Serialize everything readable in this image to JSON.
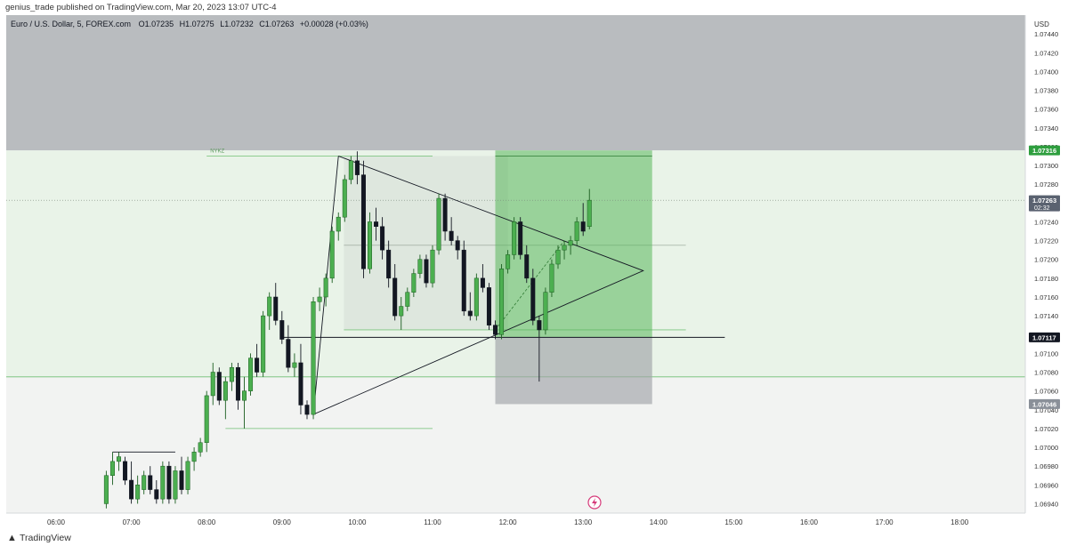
{
  "header": {
    "published": "genius_trade published on TradingView.com, Mar 20, 2023 13:07 UTC-4"
  },
  "legend": {
    "symbol": "Euro / U.S. Dollar, 5, FOREX.com",
    "open": "O1.07235",
    "high": "H1.07275",
    "low": "L1.07232",
    "close": "C1.07263",
    "change": "+0.00028 (+0.03%)"
  },
  "price_axis": {
    "currency": "USD",
    "ticks": [
      "1.07440",
      "1.07420",
      "1.07400",
      "1.07380",
      "1.07360",
      "1.07340",
      "1.07320",
      "1.07300",
      "1.07280",
      "1.07260",
      "1.07240",
      "1.07220",
      "1.07200",
      "1.07180",
      "1.07160",
      "1.07140",
      "1.07120",
      "1.07100",
      "1.07080",
      "1.07060",
      "1.07040",
      "1.07020",
      "1.07000",
      "1.06980",
      "1.06960",
      "1.06940"
    ]
  },
  "price_badges": [
    {
      "label": "1.07316",
      "value": 1.07316,
      "bg": "#2e9e3e",
      "fg": "#ffffff"
    },
    {
      "label": "1.07263",
      "sub": "02:32",
      "value": 1.07263,
      "bg": "#5a6270",
      "fg": "#ffffff"
    },
    {
      "label": "1.07117",
      "value": 1.07117,
      "bg": "#131722",
      "fg": "#ffffff"
    },
    {
      "label": "1.07046",
      "value": 1.07046,
      "bg": "#8a9099",
      "fg": "#ffffff"
    }
  ],
  "time_axis": [
    "06:00",
    "07:00",
    "08:00",
    "09:00",
    "10:00",
    "11:00",
    "12:00",
    "13:00",
    "14:00",
    "15:00",
    "16:00",
    "17:00",
    "18:00"
  ],
  "annotation_label": "NYKZ",
  "footer": {
    "brand": "TradingView"
  },
  "colors": {
    "up": "#4caf50",
    "down": "#131722",
    "upBorder": "#1b5e20",
    "zoneGray": "#b9bcbf",
    "zoneGreen": "#e9f3e8",
    "target": "#58b65a",
    "stop": "#a0a3a8"
  },
  "chart_data": {
    "type": "candlestick",
    "symbol": "EURUSD",
    "timeframe": "5",
    "ylim": [
      1.0693,
      1.0746
    ],
    "xlim": [
      "05:45",
      "18:30"
    ],
    "candles": [
      {
        "t": "06:40",
        "o": 1.0694,
        "h": 1.06975,
        "l": 1.06935,
        "c": 1.0697
      },
      {
        "t": "06:45",
        "o": 1.0697,
        "h": 1.06995,
        "l": 1.0696,
        "c": 1.06985
      },
      {
        "t": "06:50",
        "o": 1.06985,
        "h": 1.06995,
        "l": 1.06975,
        "c": 1.0699
      },
      {
        "t": "06:55",
        "o": 1.06985,
        "h": 1.0699,
        "l": 1.0696,
        "c": 1.06965
      },
      {
        "t": "07:00",
        "o": 1.06965,
        "h": 1.06985,
        "l": 1.0694,
        "c": 1.06945
      },
      {
        "t": "07:05",
        "o": 1.06945,
        "h": 1.0697,
        "l": 1.0694,
        "c": 1.0696
      },
      {
        "t": "07:10",
        "o": 1.06955,
        "h": 1.06975,
        "l": 1.0695,
        "c": 1.0697
      },
      {
        "t": "07:15",
        "o": 1.0697,
        "h": 1.0698,
        "l": 1.0695,
        "c": 1.06955
      },
      {
        "t": "07:20",
        "o": 1.06955,
        "h": 1.06965,
        "l": 1.0694,
        "c": 1.06945
      },
      {
        "t": "07:25",
        "o": 1.06945,
        "h": 1.06985,
        "l": 1.0694,
        "c": 1.0698
      },
      {
        "t": "07:30",
        "o": 1.0698,
        "h": 1.06985,
        "l": 1.0694,
        "c": 1.06945
      },
      {
        "t": "07:35",
        "o": 1.06945,
        "h": 1.0698,
        "l": 1.0694,
        "c": 1.06975
      },
      {
        "t": "07:40",
        "o": 1.06975,
        "h": 1.0699,
        "l": 1.0695,
        "c": 1.06955
      },
      {
        "t": "07:45",
        "o": 1.06955,
        "h": 1.0699,
        "l": 1.0695,
        "c": 1.06985
      },
      {
        "t": "07:50",
        "o": 1.06985,
        "h": 1.07,
        "l": 1.06975,
        "c": 1.06995
      },
      {
        "t": "07:55",
        "o": 1.06995,
        "h": 1.0701,
        "l": 1.0699,
        "c": 1.07005
      },
      {
        "t": "08:00",
        "o": 1.07005,
        "h": 1.0706,
        "l": 1.06995,
        "c": 1.07055
      },
      {
        "t": "08:05",
        "o": 1.07055,
        "h": 1.0709,
        "l": 1.07045,
        "c": 1.0708
      },
      {
        "t": "08:10",
        "o": 1.0708,
        "h": 1.07085,
        "l": 1.07045,
        "c": 1.0705
      },
      {
        "t": "08:15",
        "o": 1.0705,
        "h": 1.07075,
        "l": 1.0703,
        "c": 1.0707
      },
      {
        "t": "08:20",
        "o": 1.0707,
        "h": 1.0709,
        "l": 1.0706,
        "c": 1.07085
      },
      {
        "t": "08:25",
        "o": 1.07085,
        "h": 1.0709,
        "l": 1.0704,
        "c": 1.0705
      },
      {
        "t": "08:30",
        "o": 1.0705,
        "h": 1.07075,
        "l": 1.0702,
        "c": 1.0706
      },
      {
        "t": "08:35",
        "o": 1.0706,
        "h": 1.071,
        "l": 1.07055,
        "c": 1.07095
      },
      {
        "t": "08:40",
        "o": 1.07095,
        "h": 1.0711,
        "l": 1.07075,
        "c": 1.0708
      },
      {
        "t": "08:45",
        "o": 1.0708,
        "h": 1.07145,
        "l": 1.07075,
        "c": 1.0714
      },
      {
        "t": "08:50",
        "o": 1.0714,
        "h": 1.07165,
        "l": 1.07125,
        "c": 1.0716
      },
      {
        "t": "08:55",
        "o": 1.0716,
        "h": 1.07175,
        "l": 1.0713,
        "c": 1.07135
      },
      {
        "t": "09:00",
        "o": 1.07135,
        "h": 1.07145,
        "l": 1.0711,
        "c": 1.07115
      },
      {
        "t": "09:05",
        "o": 1.07115,
        "h": 1.0713,
        "l": 1.0708,
        "c": 1.07085
      },
      {
        "t": "09:10",
        "o": 1.07085,
        "h": 1.071,
        "l": 1.07075,
        "c": 1.0709
      },
      {
        "t": "09:15",
        "o": 1.0709,
        "h": 1.0711,
        "l": 1.07035,
        "c": 1.07045
      },
      {
        "t": "09:20",
        "o": 1.07045,
        "h": 1.0705,
        "l": 1.0703,
        "c": 1.07035
      },
      {
        "t": "09:25",
        "o": 1.07035,
        "h": 1.0716,
        "l": 1.0703,
        "c": 1.07155
      },
      {
        "t": "09:30",
        "o": 1.07155,
        "h": 1.0717,
        "l": 1.07145,
        "c": 1.0716
      },
      {
        "t": "09:35",
        "o": 1.0716,
        "h": 1.07185,
        "l": 1.0715,
        "c": 1.0718
      },
      {
        "t": "09:40",
        "o": 1.0718,
        "h": 1.07235,
        "l": 1.07175,
        "c": 1.0723
      },
      {
        "t": "09:45",
        "o": 1.0723,
        "h": 1.0725,
        "l": 1.0722,
        "c": 1.07245
      },
      {
        "t": "09:50",
        "o": 1.07245,
        "h": 1.0729,
        "l": 1.0724,
        "c": 1.07285
      },
      {
        "t": "09:55",
        "o": 1.07285,
        "h": 1.0731,
        "l": 1.0728,
        "c": 1.07305
      },
      {
        "t": "10:00",
        "o": 1.07305,
        "h": 1.07315,
        "l": 1.0728,
        "c": 1.0729
      },
      {
        "t": "10:05",
        "o": 1.0729,
        "h": 1.07305,
        "l": 1.0718,
        "c": 1.0719
      },
      {
        "t": "10:10",
        "o": 1.0719,
        "h": 1.0725,
        "l": 1.07185,
        "c": 1.0724
      },
      {
        "t": "10:15",
        "o": 1.0724,
        "h": 1.07255,
        "l": 1.0722,
        "c": 1.07235
      },
      {
        "t": "10:20",
        "o": 1.07235,
        "h": 1.07245,
        "l": 1.072,
        "c": 1.0721
      },
      {
        "t": "10:25",
        "o": 1.0721,
        "h": 1.0722,
        "l": 1.0717,
        "c": 1.0718
      },
      {
        "t": "10:30",
        "o": 1.0718,
        "h": 1.07195,
        "l": 1.07135,
        "c": 1.0714
      },
      {
        "t": "10:35",
        "o": 1.0714,
        "h": 1.0716,
        "l": 1.07125,
        "c": 1.0715
      },
      {
        "t": "10:40",
        "o": 1.0715,
        "h": 1.0717,
        "l": 1.07145,
        "c": 1.07165
      },
      {
        "t": "10:45",
        "o": 1.07165,
        "h": 1.0719,
        "l": 1.0716,
        "c": 1.07185
      },
      {
        "t": "10:50",
        "o": 1.07185,
        "h": 1.07205,
        "l": 1.0718,
        "c": 1.072
      },
      {
        "t": "10:55",
        "o": 1.072,
        "h": 1.07205,
        "l": 1.0717,
        "c": 1.07175
      },
      {
        "t": "11:00",
        "o": 1.07175,
        "h": 1.07215,
        "l": 1.0717,
        "c": 1.0721
      },
      {
        "t": "11:05",
        "o": 1.0721,
        "h": 1.0727,
        "l": 1.07205,
        "c": 1.07265
      },
      {
        "t": "11:10",
        "o": 1.07265,
        "h": 1.0727,
        "l": 1.0722,
        "c": 1.0723
      },
      {
        "t": "11:15",
        "o": 1.0723,
        "h": 1.07245,
        "l": 1.07215,
        "c": 1.0722
      },
      {
        "t": "11:20",
        "o": 1.0722,
        "h": 1.07225,
        "l": 1.072,
        "c": 1.0721
      },
      {
        "t": "11:25",
        "o": 1.0721,
        "h": 1.0722,
        "l": 1.0714,
        "c": 1.07145
      },
      {
        "t": "11:30",
        "o": 1.07145,
        "h": 1.07165,
        "l": 1.07135,
        "c": 1.0714
      },
      {
        "t": "11:35",
        "o": 1.0714,
        "h": 1.07185,
        "l": 1.07135,
        "c": 1.0718
      },
      {
        "t": "11:40",
        "o": 1.0718,
        "h": 1.07195,
        "l": 1.07165,
        "c": 1.0717
      },
      {
        "t": "11:45",
        "o": 1.0717,
        "h": 1.07175,
        "l": 1.07125,
        "c": 1.0713
      },
      {
        "t": "11:50",
        "o": 1.0713,
        "h": 1.07135,
        "l": 1.07115,
        "c": 1.0712
      },
      {
        "t": "11:55",
        "o": 1.0712,
        "h": 1.07195,
        "l": 1.07115,
        "c": 1.0719
      },
      {
        "t": "12:00",
        "o": 1.0719,
        "h": 1.0721,
        "l": 1.07185,
        "c": 1.07205
      },
      {
        "t": "12:05",
        "o": 1.07205,
        "h": 1.07245,
        "l": 1.072,
        "c": 1.0724
      },
      {
        "t": "12:10",
        "o": 1.0724,
        "h": 1.07245,
        "l": 1.072,
        "c": 1.07205
      },
      {
        "t": "12:15",
        "o": 1.07205,
        "h": 1.07215,
        "l": 1.07175,
        "c": 1.0718
      },
      {
        "t": "12:20",
        "o": 1.0718,
        "h": 1.0719,
        "l": 1.0713,
        "c": 1.07135
      },
      {
        "t": "12:25",
        "o": 1.07135,
        "h": 1.0714,
        "l": 1.0707,
        "c": 1.07125
      },
      {
        "t": "12:30",
        "o": 1.07125,
        "h": 1.0717,
        "l": 1.0712,
        "c": 1.07165
      },
      {
        "t": "12:35",
        "o": 1.07165,
        "h": 1.072,
        "l": 1.0716,
        "c": 1.07195
      },
      {
        "t": "12:40",
        "o": 1.07195,
        "h": 1.07215,
        "l": 1.0719,
        "c": 1.0721
      },
      {
        "t": "12:45",
        "o": 1.0721,
        "h": 1.0722,
        "l": 1.072,
        "c": 1.07215
      },
      {
        "t": "12:50",
        "o": 1.07215,
        "h": 1.07225,
        "l": 1.07205,
        "c": 1.0722
      },
      {
        "t": "12:55",
        "o": 1.0722,
        "h": 1.07245,
        "l": 1.07215,
        "c": 1.0724
      },
      {
        "t": "13:00",
        "o": 1.0724,
        "h": 1.0726,
        "l": 1.07225,
        "c": 1.0723
      },
      {
        "t": "13:05",
        "o": 1.07235,
        "h": 1.07275,
        "l": 1.07232,
        "c": 1.07263
      }
    ],
    "drawings": {
      "gray_zone": {
        "top": 1.0746,
        "bottom": 1.07316
      },
      "green_zone": {
        "top": 1.07316,
        "bottom": 1.07075
      },
      "range_box": {
        "from": "10:00",
        "to": "12:00",
        "top": 1.0731,
        "bottom": 1.07125
      },
      "long_position": {
        "from": "11:50",
        "to": "13:55",
        "entry": 1.07117,
        "target": 1.07316,
        "stop": 1.07046
      },
      "horizontal_line": {
        "price": 1.07117,
        "from": "09:00",
        "to": "15:00"
      },
      "triangle": {
        "a": [
          "09:45",
          1.0731
        ],
        "b": [
          "09:25",
          1.07035
        ],
        "apex": [
          "13:55",
          1.07188
        ]
      },
      "nykz_high": {
        "price": 1.0731,
        "from": "08:00",
        "to": "11:00"
      },
      "low_line": {
        "price": 1.0702,
        "from": "08:15",
        "to": "11:00"
      }
    }
  }
}
